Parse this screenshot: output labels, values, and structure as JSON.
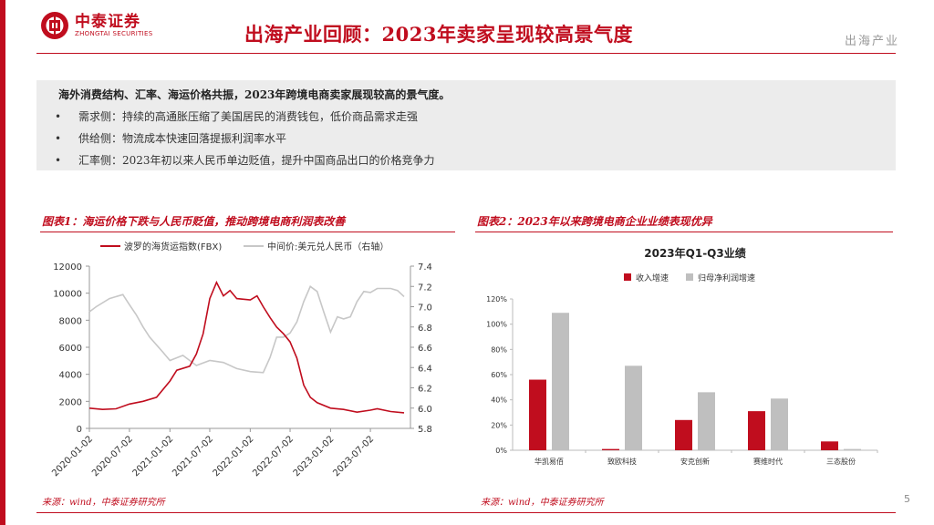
{
  "brand": {
    "name_cn": "中泰证券",
    "name_en": "ZHONGTAI SECURITIES",
    "accent": "#c00d1e"
  },
  "header": {
    "title": "出海产业回顾：2023年卖家呈现较高景气度",
    "section": "出海产业"
  },
  "summary": {
    "headline": "海外消费结构、汇率、海运价格共振，2023年跨境电商卖家展现较高的景气度。",
    "bullets": [
      "需求侧：持续的高通胀压缩了美国居民的消费钱包，低价商品需求走强",
      "供给侧：物流成本快速回落提振利润率水平",
      "汇率侧：2023年初以来人民币单边贬值，提升中国商品出口的价格竞争力"
    ]
  },
  "figure1": {
    "title": "图表1：海运价格下跌与人民币贬值，推动跨境电商利润表改善",
    "source": "来源：wind，中泰证券研究所"
  },
  "figure2": {
    "title": "图表2：2023年以来跨境电商企业业绩表现优异",
    "source": "来源：wind，中泰证券研究所"
  },
  "page_number": "5",
  "chart_data": [
    {
      "type": "line",
      "title": "",
      "series": [
        {
          "name": "波罗的海货运指数(FBX)",
          "axis": "left",
          "color": "#c00d1e",
          "points": [
            [
              "2020-01-02",
              1500
            ],
            [
              "2020-03-02",
              1400
            ],
            [
              "2020-05-02",
              1450
            ],
            [
              "2020-07-02",
              1800
            ],
            [
              "2020-09-02",
              2000
            ],
            [
              "2020-11-02",
              2300
            ],
            [
              "2021-01-02",
              3500
            ],
            [
              "2021-02-02",
              4300
            ],
            [
              "2021-04-02",
              4600
            ],
            [
              "2021-05-02",
              5500
            ],
            [
              "2021-06-02",
              7000
            ],
            [
              "2021-07-02",
              9600
            ],
            [
              "2021-08-02",
              10800
            ],
            [
              "2021-09-02",
              9800
            ],
            [
              "2021-10-02",
              10200
            ],
            [
              "2021-11-02",
              9600
            ],
            [
              "2022-01-02",
              9500
            ],
            [
              "2022-02-02",
              9800
            ],
            [
              "2022-03-02",
              9000
            ],
            [
              "2022-04-02",
              8200
            ],
            [
              "2022-05-02",
              7500
            ],
            [
              "2022-06-02",
              7000
            ],
            [
              "2022-07-02",
              6400
            ],
            [
              "2022-08-02",
              5200
            ],
            [
              "2022-09-02",
              3200
            ],
            [
              "2022-10-02",
              2300
            ],
            [
              "2022-11-02",
              1900
            ],
            [
              "2023-01-02",
              1500
            ],
            [
              "2023-03-02",
              1400
            ],
            [
              "2023-05-02",
              1200
            ],
            [
              "2023-07-02",
              1350
            ],
            [
              "2023-08-02",
              1450
            ],
            [
              "2023-10-02",
              1250
            ],
            [
              "2023-12-02",
              1150
            ]
          ]
        },
        {
          "name": "中间价:美元兑人民币（右轴）",
          "axis": "right",
          "color": "#c7c7c7",
          "points": [
            [
              "2020-01-02",
              6.95
            ],
            [
              "2020-02-02",
              7.0
            ],
            [
              "2020-04-02",
              7.08
            ],
            [
              "2020-06-02",
              7.12
            ],
            [
              "2020-07-02",
              7.02
            ],
            [
              "2020-08-02",
              6.92
            ],
            [
              "2020-09-02",
              6.8
            ],
            [
              "2020-10-02",
              6.7
            ],
            [
              "2020-12-02",
              6.55
            ],
            [
              "2021-01-02",
              6.47
            ],
            [
              "2021-03-02",
              6.52
            ],
            [
              "2021-05-02",
              6.42
            ],
            [
              "2021-07-02",
              6.47
            ],
            [
              "2021-09-02",
              6.45
            ],
            [
              "2021-11-02",
              6.39
            ],
            [
              "2022-01-02",
              6.36
            ],
            [
              "2022-03-02",
              6.35
            ],
            [
              "2022-04-02",
              6.5
            ],
            [
              "2022-05-02",
              6.7
            ],
            [
              "2022-06-02",
              6.7
            ],
            [
              "2022-07-02",
              6.74
            ],
            [
              "2022-08-02",
              6.85
            ],
            [
              "2022-09-02",
              7.05
            ],
            [
              "2022-10-02",
              7.2
            ],
            [
              "2022-11-02",
              7.15
            ],
            [
              "2022-12-02",
              6.95
            ],
            [
              "2023-01-02",
              6.75
            ],
            [
              "2023-02-02",
              6.9
            ],
            [
              "2023-03-02",
              6.88
            ],
            [
              "2023-04-02",
              6.9
            ],
            [
              "2023-05-02",
              7.05
            ],
            [
              "2023-06-02",
              7.15
            ],
            [
              "2023-07-02",
              7.14
            ],
            [
              "2023-08-02",
              7.18
            ],
            [
              "2023-09-02",
              7.18
            ],
            [
              "2023-10-02",
              7.18
            ],
            [
              "2023-11-02",
              7.16
            ],
            [
              "2023-12-02",
              7.1
            ]
          ]
        }
      ],
      "ylim_left": [
        0,
        12000
      ],
      "yticks_left": [
        "0",
        "2000",
        "4000",
        "6000",
        "8000",
        "10000",
        "12000"
      ],
      "ylim_right": [
        5.8,
        7.4
      ],
      "yticks_right": [
        "5.8",
        "6.0",
        "6.2",
        "6.4",
        "6.6",
        "6.8",
        "7.0",
        "7.2",
        "7.4"
      ],
      "xticks": [
        "2020-01-02",
        "2020-07-02",
        "2021-01-02",
        "2021-07-02",
        "2022-01-02",
        "2022-07-02",
        "2023-01-02",
        "2023-07-02"
      ],
      "xlim": [
        "2020-01-02",
        "2023-12-31"
      ],
      "legend_position": "top",
      "grid": false
    },
    {
      "type": "bar",
      "title": "2023年Q1-Q3业绩",
      "categories": [
        "华凯易佰",
        "致欧科技",
        "安克创新",
        "赛维时代",
        "三态股份"
      ],
      "series": [
        {
          "name": "收入增速",
          "color": "#c00d1e",
          "values": [
            0.56,
            0.01,
            0.24,
            0.31,
            0.07
          ]
        },
        {
          "name": "归母净利润增速",
          "color": "#bfbfbf",
          "values": [
            1.09,
            0.67,
            0.46,
            0.41,
            0.01
          ]
        }
      ],
      "ylim": [
        0,
        1.2
      ],
      "yticks": [
        "0%",
        "20%",
        "40%",
        "60%",
        "80%",
        "100%",
        "120%"
      ],
      "legend_position": "top",
      "grid": false
    }
  ]
}
